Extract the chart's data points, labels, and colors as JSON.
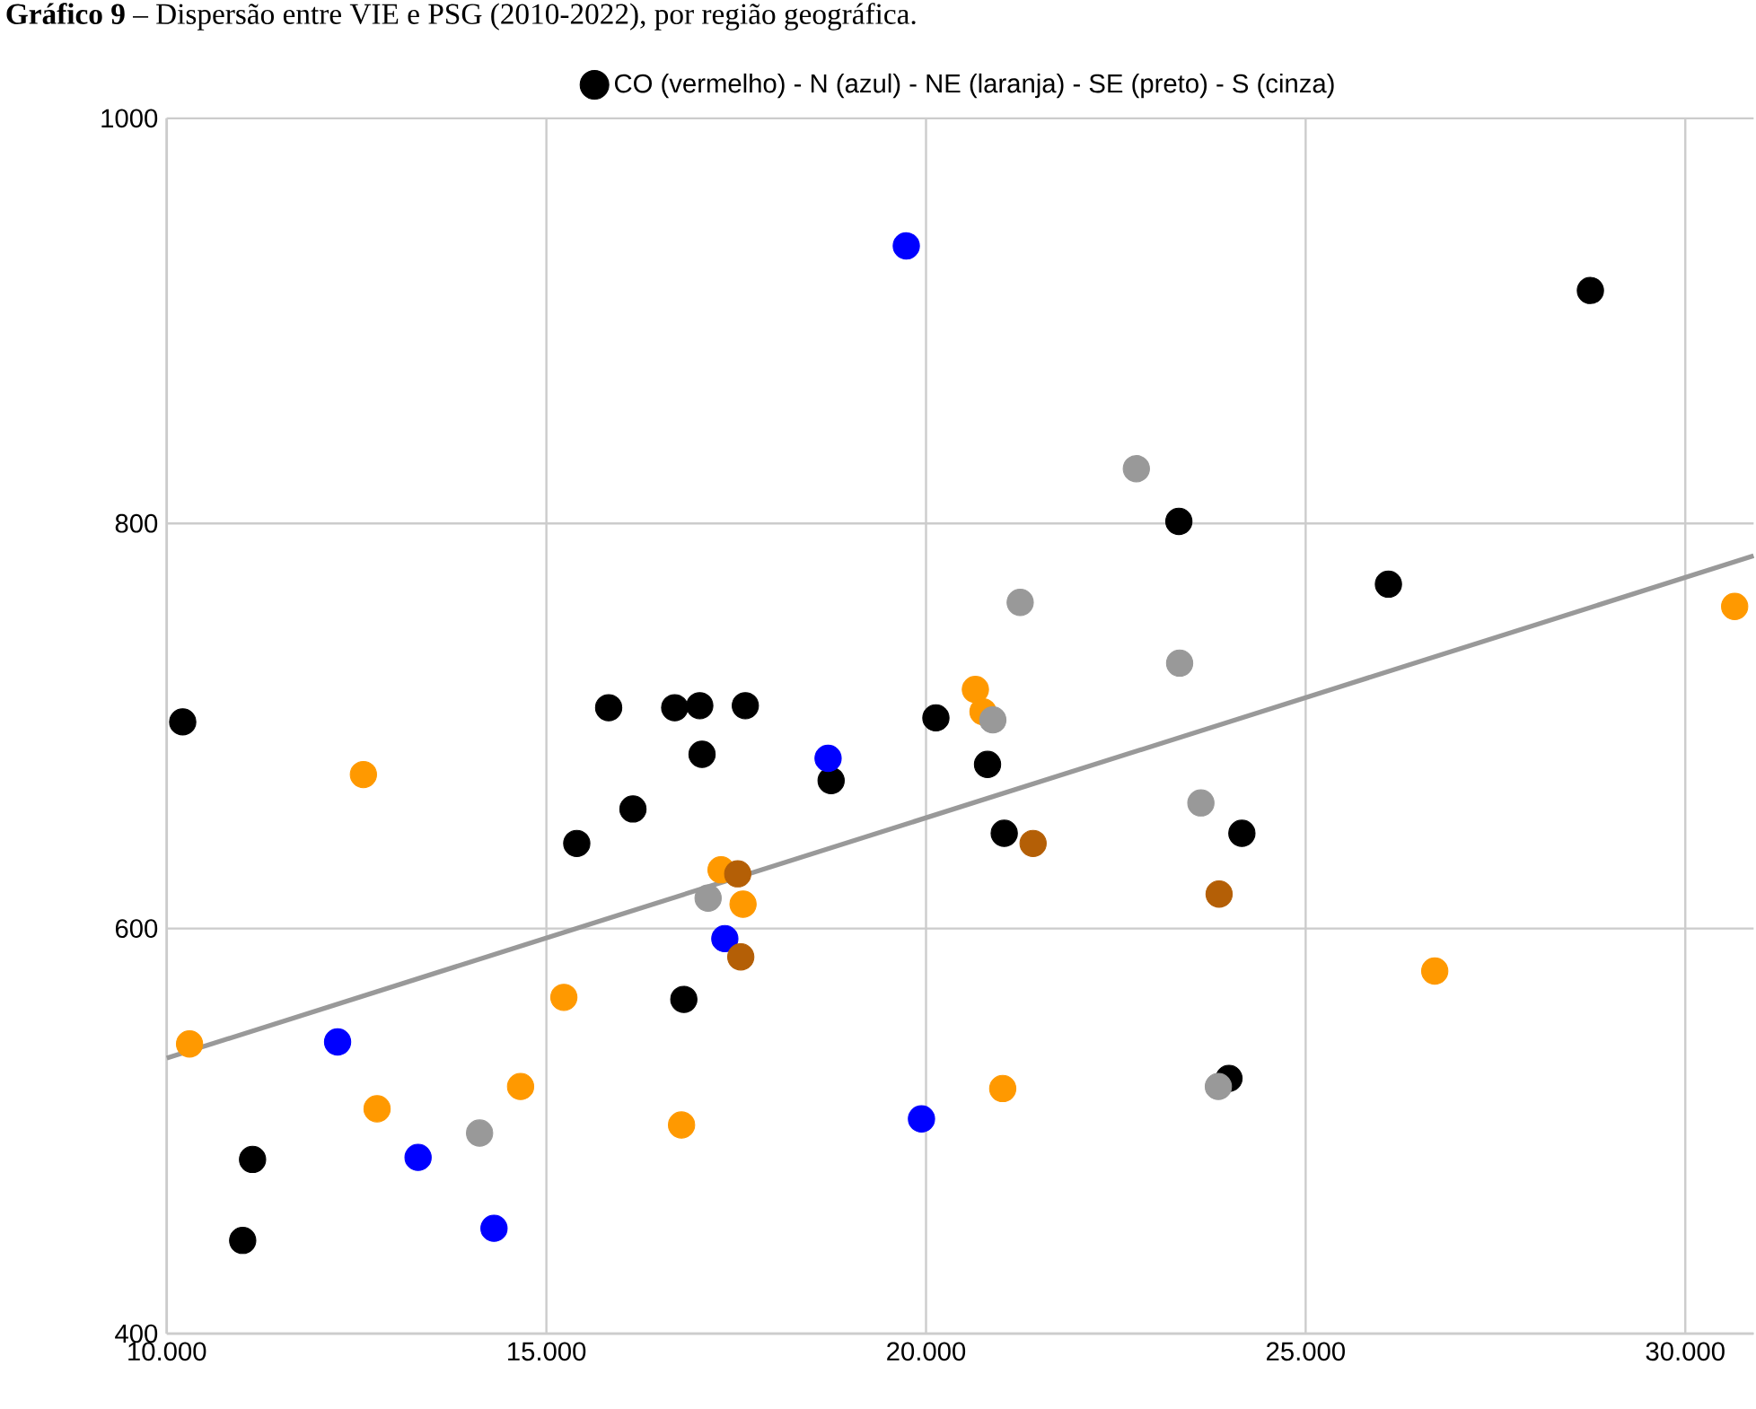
{
  "chart_data": {
    "type": "scatter",
    "title": "**Gráfico 9** – Dispersão entre VIE e PSG (2010-2022), por região geográfica.",
    "xlim": [
      10000,
      30900
    ],
    "ylim": [
      400,
      1000
    ],
    "xticks": [
      {
        "value": 10000,
        "label": "10.000"
      },
      {
        "value": 15000,
        "label": "15.000"
      },
      {
        "value": 20000,
        "label": "20.000"
      },
      {
        "value": 25000,
        "label": "25.000"
      },
      {
        "value": 30000,
        "label": "30.000"
      }
    ],
    "yticks": [
      400,
      600,
      800,
      1000
    ],
    "grid": true,
    "legend": "top",
    "series": [
      {
        "name": "CO (vermelho) - N (azul) - NE (laranja) - SE (preto) - S (cinza)",
        "type": "scatter",
        "color": "#000000",
        "x": [
          10210,
          11000,
          11130,
          15400,
          15820,
          16140,
          16690,
          16810,
          17020,
          17050,
          17620,
          18750,
          20130,
          20810,
          21030,
          23330,
          23990,
          24160,
          26090,
          28750,
          19740,
          18710,
          17350,
          12250,
          13310,
          14310,
          19940,
          12590,
          10300,
          12770,
          14660,
          15230,
          16780,
          17300,
          17590,
          20650,
          20750,
          21010,
          26700,
          30650,
          17520,
          17560,
          21410,
          23860,
          14120,
          17130,
          20880,
          21240,
          22770,
          23340,
          23620,
          23850
        ],
        "values": [
          702,
          446,
          486,
          642,
          709,
          659,
          709,
          565,
          710,
          686,
          710,
          673,
          704,
          681,
          647,
          801,
          526,
          647,
          770,
          915,
          937,
          684,
          595,
          544,
          487,
          452,
          506,
          676,
          543,
          511,
          522,
          566,
          503,
          629,
          612,
          718,
          707,
          521,
          579,
          759,
          627,
          586,
          642,
          617,
          499,
          615,
          703,
          761,
          827,
          731,
          662,
          522
        ],
        "colors": [
          "#000000",
          "#000000",
          "#000000",
          "#000000",
          "#000000",
          "#000000",
          "#000000",
          "#000000",
          "#000000",
          "#000000",
          "#000000",
          "#000000",
          "#000000",
          "#000000",
          "#000000",
          "#000000",
          "#000000",
          "#000000",
          "#000000",
          "#000000",
          "#0000ff",
          "#0000ff",
          "#0000ff",
          "#0000ff",
          "#0000ff",
          "#0000ff",
          "#0000ff",
          "#ff9900",
          "#ff9900",
          "#ff9900",
          "#ff9900",
          "#ff9900",
          "#ff9900",
          "#ff9900",
          "#ff9900",
          "#ff9900",
          "#ff9900",
          "#ff9900",
          "#ff9900",
          "#ff9900",
          "#b45f06",
          "#b45f06",
          "#b45f06",
          "#b45f06",
          "#999999",
          "#999999",
          "#999999",
          "#999999",
          "#999999",
          "#999999",
          "#999999",
          "#999999"
        ]
      },
      {
        "type": "line",
        "color": "#999999",
        "x": [
          10000,
          30900
        ],
        "values": [
          536,
          784
        ]
      }
    ]
  }
}
